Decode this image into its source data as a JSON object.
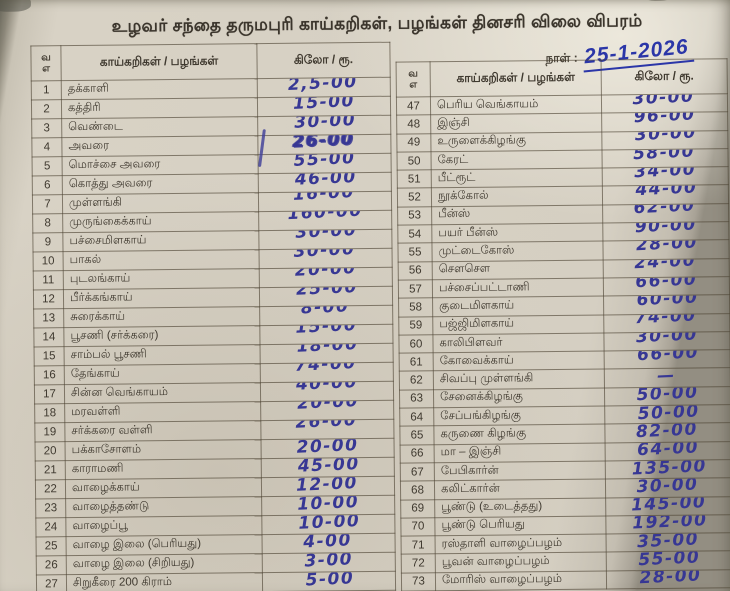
{
  "title": "உழவர் சந்தை தருமபுரி காய்கறிகள், பழங்கள் தினசரி விலை விபரம்",
  "date_label": "நாள் :",
  "date_value": "25-1-2026",
  "left_table": {
    "headers": {
      "sno_line1": "வ",
      "sno_line2": "எ",
      "item": "காய்கறிகள் / பழங்கள்",
      "price": "கிலோ / ரூ."
    },
    "rows": [
      {
        "no": "1",
        "item": "தக்காளி",
        "price": "2,5-00"
      },
      {
        "no": "2",
        "item": "கத்திரி",
        "price": "15-00"
      },
      {
        "no": "3",
        "item": "வெண்டை",
        "price": "30-00"
      },
      {
        "no": "4",
        "item": "அவரை",
        "price": "26-00"
      },
      {
        "no": "5",
        "item": "மொச்சை அவரை",
        "price": "55-00"
      },
      {
        "no": "6",
        "item": "கொத்து அவரை",
        "price": "46-00"
      },
      {
        "no": "7",
        "item": "முள்ளங்கி",
        "price": "16-00"
      },
      {
        "no": "8",
        "item": "முருங்கைக்காய்",
        "price": "160-00"
      },
      {
        "no": "9",
        "item": "பச்சைமிளகாய்",
        "price": "30-00"
      },
      {
        "no": "10",
        "item": "பாகல்",
        "price": "30-00"
      },
      {
        "no": "11",
        "item": "புடலங்காய்",
        "price": "20-00"
      },
      {
        "no": "12",
        "item": "பீர்க்கங்காய்",
        "price": "25-00"
      },
      {
        "no": "13",
        "item": "சுரைக்காய்",
        "price": "8-00"
      },
      {
        "no": "14",
        "item": "பூசணி (சர்க்கரை)",
        "price": "15-00"
      },
      {
        "no": "15",
        "item": "சாம்பல் பூசணி",
        "price": "18-00"
      },
      {
        "no": "16",
        "item": "தேங்காய்",
        "price": "74-00"
      },
      {
        "no": "17",
        "item": "சின்ன வெங்காயம்",
        "price": "40-00"
      },
      {
        "no": "18",
        "item": "மரவள்ளி",
        "price": "20-00"
      },
      {
        "no": "19",
        "item": "சர்க்கரை வள்ளி",
        "price": "26-00"
      },
      {
        "no": "20",
        "item": "பக்காசோளம்",
        "price": "20-00"
      },
      {
        "no": "21",
        "item": "காராமணி",
        "price": "45-00"
      },
      {
        "no": "22",
        "item": "வாழைக்காய்",
        "price": "12-00"
      },
      {
        "no": "23",
        "item": "வாழைத்தண்டு",
        "price": "10-00"
      },
      {
        "no": "24",
        "item": "வாழைப்பூ",
        "price": "10-00"
      },
      {
        "no": "25",
        "item": "வாழை இலை (பெரியது)",
        "price": "4-00"
      },
      {
        "no": "26",
        "item": "வாழை இலை (சிறியது)",
        "price": "3-00"
      },
      {
        "no": "27",
        "item": "சிறுகீரை 200 கிராம்",
        "price": "5-00"
      }
    ]
  },
  "right_table": {
    "headers": {
      "sno_line1": "வ",
      "sno_line2": "எ",
      "item": "காய்கறிகள் / பழங்கள்",
      "price": "கிலோ / ரூ."
    },
    "rows": [
      {
        "no": "47",
        "item": "பெரிய வெங்காயம்",
        "price": "30-00"
      },
      {
        "no": "48",
        "item": "இஞ்சி",
        "price": "96-00"
      },
      {
        "no": "49",
        "item": "உருளைக்கிழங்கு",
        "price": "30-00"
      },
      {
        "no": "50",
        "item": "கேரட்",
        "price": "58-00"
      },
      {
        "no": "51",
        "item": "பீட்ரூட்",
        "price": "34-00"
      },
      {
        "no": "52",
        "item": "நூக்கோல்",
        "price": "44-00"
      },
      {
        "no": "53",
        "item": "பீன்ஸ்",
        "price": "62-00"
      },
      {
        "no": "54",
        "item": "பயர் பீன்ஸ்",
        "price": "90-00"
      },
      {
        "no": "55",
        "item": "முட்டைகோஸ்",
        "price": "28-00"
      },
      {
        "no": "56",
        "item": "செளசெள",
        "price": "24-00"
      },
      {
        "no": "57",
        "item": "பச்சைப்பட்டாணி",
        "price": "66-00"
      },
      {
        "no": "58",
        "item": "குடைமிளகாய்",
        "price": "60-00"
      },
      {
        "no": "59",
        "item": "பஜ்ஜிமிளகாய்",
        "price": "74-00"
      },
      {
        "no": "60",
        "item": "காலிபிளவர்",
        "price": "30-00"
      },
      {
        "no": "61",
        "item": "கோவைக்காய்",
        "price": "66-00"
      },
      {
        "no": "62",
        "item": "சிவப்பு முள்ளங்கி",
        "price": "—"
      },
      {
        "no": "63",
        "item": "சேனைக்கிழங்கு",
        "price": "50-00"
      },
      {
        "no": "64",
        "item": "சேப்பங்கிழங்கு",
        "price": "50-00"
      },
      {
        "no": "65",
        "item": "கருணை கிழங்கு",
        "price": "82-00"
      },
      {
        "no": "66",
        "item": "மா – இஞ்சி",
        "price": "64-00"
      },
      {
        "no": "67",
        "item": "பேபிகார்ன்",
        "price": "135-00"
      },
      {
        "no": "68",
        "item": "கலிட்கார்ன்",
        "price": "30-00"
      },
      {
        "no": "69",
        "item": "பூண்டு (உடைத்தது)",
        "price": "145-00"
      },
      {
        "no": "70",
        "item": "பூண்டு பெரியது",
        "price": "192-00"
      },
      {
        "no": "71",
        "item": "ரஸ்தாளி வாழைப்பழம்",
        "price": "35-00"
      },
      {
        "no": "72",
        "item": "பூவன் வாழைப்பழம்",
        "price": "55-00"
      },
      {
        "no": "73",
        "item": "மோரிஸ் வாழைப்பழம்",
        "price": "28-00"
      }
    ]
  }
}
